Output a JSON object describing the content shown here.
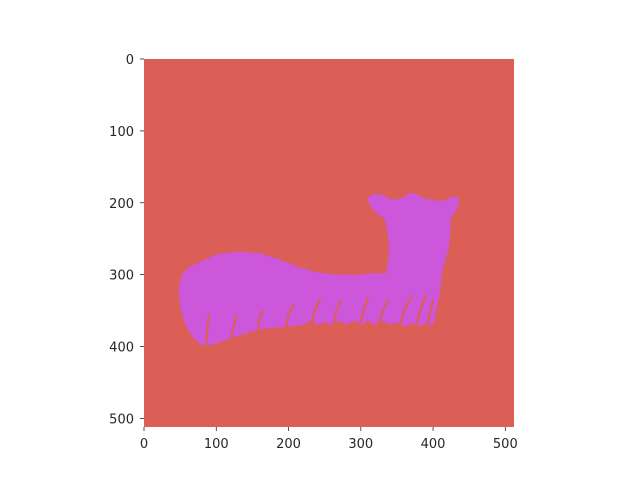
{
  "chart_data": {
    "type": "heatmap",
    "title": "",
    "xlabel": "",
    "ylabel": "",
    "xlim": [
      0,
      512
    ],
    "ylim": [
      512,
      0
    ],
    "x_ticks": [
      0,
      100,
      200,
      300,
      400,
      500
    ],
    "y_ticks": [
      0,
      100,
      200,
      300,
      400,
      500
    ],
    "grid": false,
    "legend": "none",
    "description_classes": [
      {
        "name": "background",
        "color": "#db5f57"
      },
      {
        "name": "foreground",
        "color": "#cc57db"
      }
    ],
    "regions": [
      {
        "class": "foreground",
        "outline": [
          [
            48,
            320
          ],
          [
            52,
            300
          ],
          [
            62,
            290
          ],
          [
            78,
            282
          ],
          [
            100,
            272
          ],
          [
            130,
            268
          ],
          [
            160,
            270
          ],
          [
            185,
            278
          ],
          [
            210,
            288
          ],
          [
            235,
            296
          ],
          [
            265,
            300
          ],
          [
            295,
            300
          ],
          [
            320,
            298
          ],
          [
            335,
            298
          ],
          [
            338,
            280
          ],
          [
            339,
            260
          ],
          [
            337,
            240
          ],
          [
            333,
            222
          ],
          [
            325,
            217
          ],
          [
            316,
            208
          ],
          [
            310,
            198
          ],
          [
            310,
            193
          ],
          [
            318,
            188
          ],
          [
            328,
            188
          ],
          [
            338,
            194
          ],
          [
            348,
            196
          ],
          [
            360,
            192
          ],
          [
            368,
            186
          ],
          [
            376,
            188
          ],
          [
            386,
            193
          ],
          [
            398,
            196
          ],
          [
            410,
            198
          ],
          [
            418,
            196
          ],
          [
            425,
            192
          ],
          [
            434,
            192
          ],
          [
            436,
            200
          ],
          [
            433,
            210
          ],
          [
            428,
            216
          ],
          [
            424,
            222
          ],
          [
            424,
            240
          ],
          [
            422,
            262
          ],
          [
            417,
            280
          ],
          [
            412,
            300
          ],
          [
            410,
            318
          ],
          [
            408,
            334
          ],
          [
            404,
            350
          ],
          [
            402,
            365
          ],
          [
            396,
            372
          ],
          [
            388,
            368
          ],
          [
            380,
            372
          ],
          [
            370,
            368
          ],
          [
            360,
            372
          ],
          [
            350,
            366
          ],
          [
            340,
            370
          ],
          [
            330,
            364
          ],
          [
            320,
            370
          ],
          [
            310,
            364
          ],
          [
            300,
            370
          ],
          [
            290,
            364
          ],
          [
            280,
            370
          ],
          [
            270,
            364
          ],
          [
            260,
            370
          ],
          [
            250,
            366
          ],
          [
            240,
            370
          ],
          [
            230,
            364
          ],
          [
            220,
            370
          ],
          [
            200,
            372
          ],
          [
            180,
            374
          ],
          [
            160,
            376
          ],
          [
            140,
            382
          ],
          [
            122,
            388
          ],
          [
            110,
            392
          ],
          [
            100,
            396
          ],
          [
            90,
            398
          ],
          [
            80,
            398
          ],
          [
            70,
            390
          ],
          [
            60,
            376
          ],
          [
            54,
            360
          ],
          [
            50,
            344
          ]
        ]
      }
    ],
    "grass_blades": [
      [
        [
          86,
          398
        ],
        [
          88,
          370
        ],
        [
          90,
          356
        ]
      ],
      [
        [
          120,
          392
        ],
        [
          124,
          372
        ],
        [
          128,
          356
        ]
      ],
      [
        [
          158,
          378
        ],
        [
          160,
          362
        ],
        [
          164,
          350
        ]
      ],
      [
        [
          196,
          374
        ],
        [
          200,
          356
        ],
        [
          206,
          342
        ]
      ],
      [
        [
          232,
          370
        ],
        [
          236,
          350
        ],
        [
          244,
          334
        ]
      ],
      [
        [
          262,
          370
        ],
        [
          266,
          352
        ],
        [
          272,
          336
        ]
      ],
      [
        [
          298,
          370
        ],
        [
          304,
          350
        ],
        [
          310,
          332
        ]
      ],
      [
        [
          324,
          370
        ],
        [
          330,
          352
        ],
        [
          338,
          334
        ]
      ],
      [
        [
          354,
          372
        ],
        [
          360,
          350
        ],
        [
          370,
          330
        ]
      ],
      [
        [
          376,
          372
        ],
        [
          382,
          350
        ],
        [
          390,
          328
        ]
      ],
      [
        [
          392,
          372
        ],
        [
          396,
          352
        ],
        [
          400,
          336
        ]
      ]
    ]
  }
}
